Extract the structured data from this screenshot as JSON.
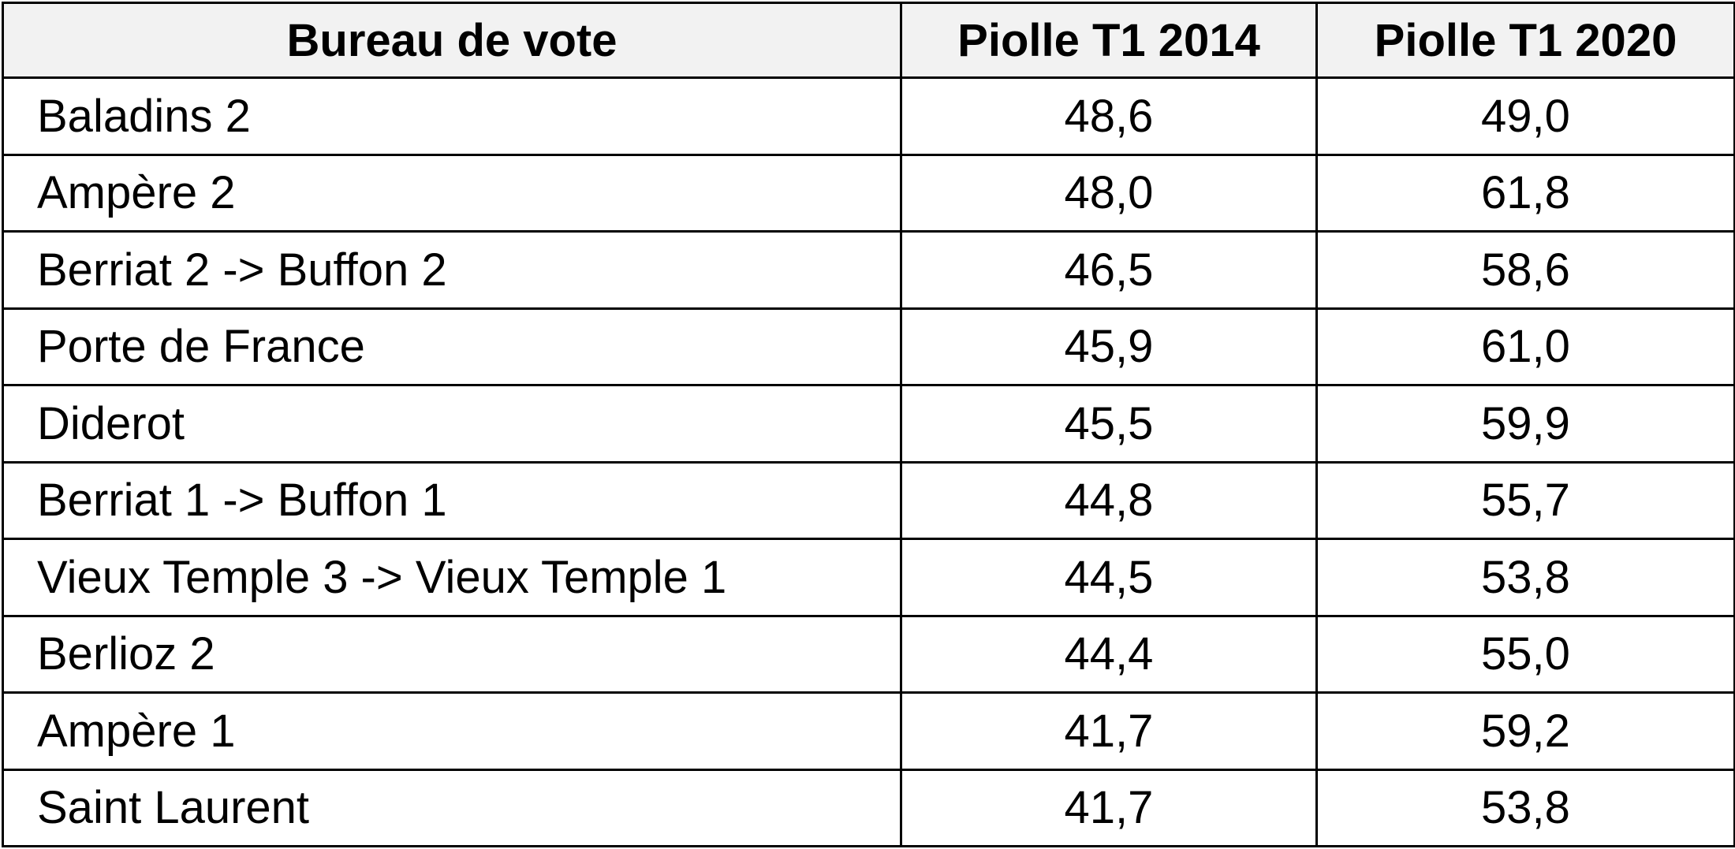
{
  "table": {
    "headers": [
      "Bureau de vote",
      "Piolle T1 2014",
      "Piolle T1 2020"
    ],
    "rows": [
      {
        "bureau": "Baladins 2",
        "t1_2014": "48,6",
        "t1_2020": "49,0"
      },
      {
        "bureau": "Ampère 2",
        "t1_2014": "48,0",
        "t1_2020": "61,8"
      },
      {
        "bureau": "Berriat 2 -> Buffon 2",
        "t1_2014": "46,5",
        "t1_2020": "58,6"
      },
      {
        "bureau": "Porte de France",
        "t1_2014": "45,9",
        "t1_2020": "61,0"
      },
      {
        "bureau": "Diderot",
        "t1_2014": "45,5",
        "t1_2020": "59,9"
      },
      {
        "bureau": "Berriat 1 -> Buffon 1",
        "t1_2014": "44,8",
        "t1_2020": "55,7"
      },
      {
        "bureau": "Vieux Temple 3 -> Vieux Temple 1",
        "t1_2014": "44,5",
        "t1_2020": "53,8"
      },
      {
        "bureau": "Berlioz 2",
        "t1_2014": "44,4",
        "t1_2020": "55,0"
      },
      {
        "bureau": "Ampère 1",
        "t1_2014": "41,7",
        "t1_2020": "59,2"
      },
      {
        "bureau": "Saint Laurent",
        "t1_2014": "41,7",
        "t1_2020": "53,8"
      }
    ]
  },
  "colors": {
    "header_background": "#f2f2f2",
    "border": "#000000",
    "text": "#000000"
  }
}
